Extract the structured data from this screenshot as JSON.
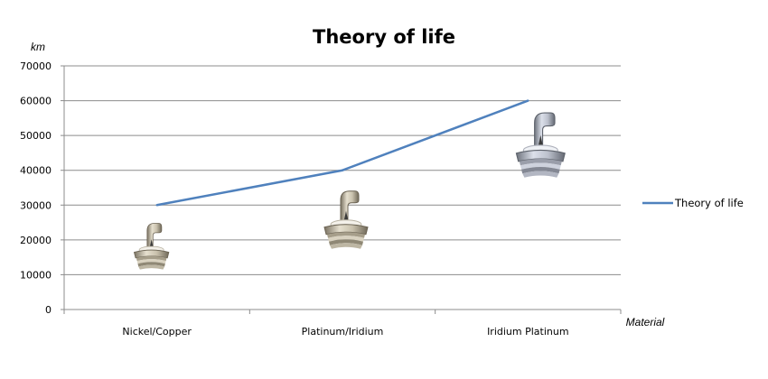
{
  "chart_data": {
    "type": "line",
    "title": "Theory of life",
    "ylabel": "km",
    "xlabel": "Material",
    "categories": [
      "Nickel/Copper",
      "Platinum/Iridium",
      "Iridium Platinum"
    ],
    "series": [
      {
        "name": "Theory of life",
        "values": [
          30000,
          40000,
          60000
        ],
        "color": "#4f81bd"
      }
    ],
    "ylim": [
      0,
      70000
    ],
    "yticks": [
      0,
      10000,
      20000,
      30000,
      40000,
      50000,
      60000,
      70000
    ],
    "grid": true,
    "legend": "right",
    "point_images": [
      "spark-plug-icon",
      "spark-plug-icon",
      "spark-plug-icon"
    ]
  }
}
